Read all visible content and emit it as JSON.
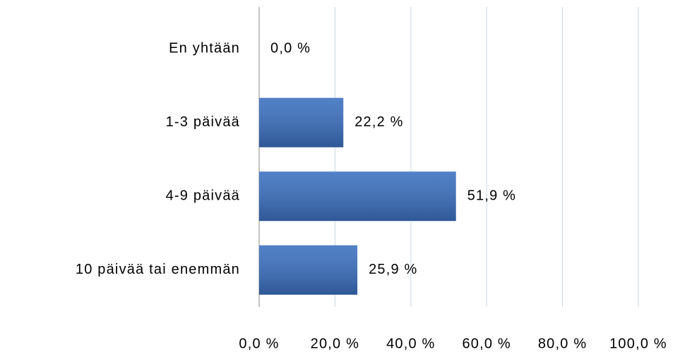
{
  "chart_data": {
    "type": "bar",
    "orientation": "horizontal",
    "categories": [
      "En yhtään",
      "1-3 päivää",
      "4-9 päivää",
      "10 päivää tai enemmän"
    ],
    "values": [
      0.0,
      22.2,
      51.9,
      25.9
    ],
    "value_labels": [
      "0,0 %",
      "22,2 %",
      "51,9 %",
      "25,9 %"
    ],
    "color": "#3a6fbf",
    "xlim": [
      0,
      100
    ],
    "xticks": [
      {
        "value": 0,
        "label": "0,0 %"
      },
      {
        "value": 20,
        "label": "20,0 %"
      },
      {
        "value": 40,
        "label": "40,0 %"
      },
      {
        "value": 60,
        "label": "60,0 %"
      },
      {
        "value": 80,
        "label": "80,0 %"
      },
      {
        "value": 100,
        "label": "100,0 %"
      }
    ],
    "grid": true
  }
}
